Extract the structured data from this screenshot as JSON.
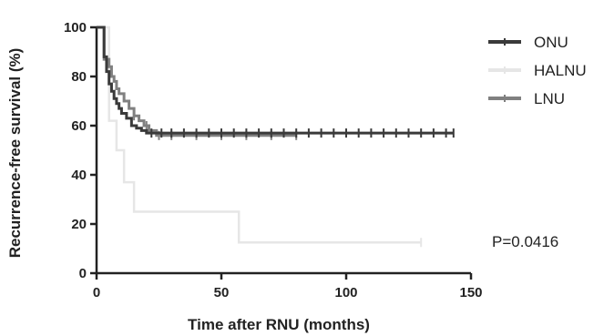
{
  "chart_data": {
    "type": "line",
    "title": "",
    "xlabel": "Time after RNU (months)",
    "ylabel": "Recurrence-free survival (%)",
    "xlim": [
      0,
      150
    ],
    "ylim": [
      0,
      100
    ],
    "x_ticks": [
      0,
      50,
      100,
      150
    ],
    "y_ticks": [
      0,
      20,
      40,
      60,
      80,
      100
    ],
    "legend_position": "top-right",
    "annotation": "P=0.0416",
    "series": [
      {
        "name": "ONU",
        "color": "#3a3a3a",
        "x": [
          0,
          3,
          4,
          5,
          6,
          7,
          8,
          9,
          10,
          12,
          14,
          16,
          18,
          20,
          22,
          30,
          40,
          80,
          143
        ],
        "y": [
          100,
          88,
          82,
          77,
          74,
          71,
          69,
          67,
          65,
          63,
          60,
          59,
          58,
          57,
          57,
          57,
          57,
          57,
          57
        ],
        "censor_x": [
          22,
          26,
          30,
          35,
          40,
          45,
          50,
          55,
          60,
          65,
          70,
          75,
          80,
          85,
          90,
          95,
          100,
          105,
          110,
          115,
          120,
          125,
          130,
          135,
          140,
          143
        ]
      },
      {
        "name": "HALNU",
        "color": "#e6e6e6",
        "x": [
          0,
          5,
          8,
          11,
          15,
          20,
          40,
          57,
          90,
          130
        ],
        "y": [
          100,
          62,
          50,
          37,
          25,
          25,
          25,
          12.5,
          12.5,
          12.5
        ],
        "censor_x": [
          130
        ]
      },
      {
        "name": "LNU",
        "color": "#808080",
        "x": [
          0,
          3,
          5,
          6,
          7,
          8,
          9,
          11,
          13,
          15,
          17,
          19,
          21,
          24,
          30,
          60,
          80
        ],
        "y": [
          100,
          87,
          84,
          80,
          78,
          75,
          73,
          70,
          67,
          64,
          62,
          60,
          58,
          56,
          56,
          56,
          56
        ],
        "censor_x": [
          15,
          20,
          25,
          30,
          40,
          50,
          60,
          70,
          80
        ]
      }
    ]
  }
}
